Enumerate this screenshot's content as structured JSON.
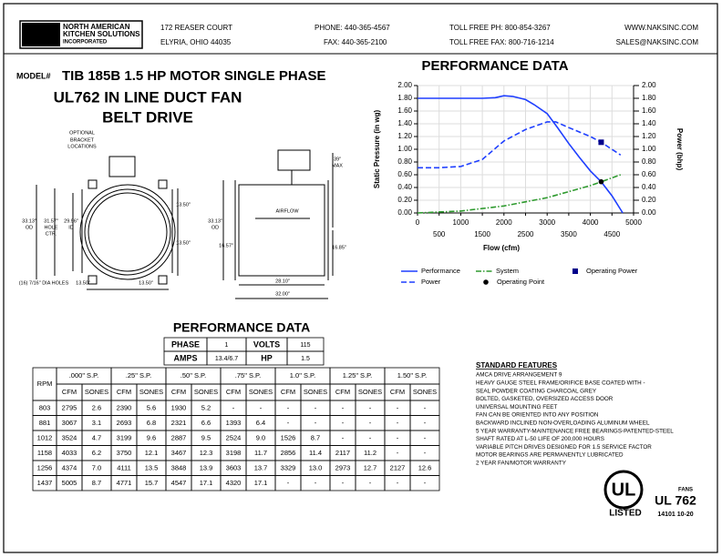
{
  "header": {
    "logo": "naks",
    "company": [
      "NORTH AMERICAN",
      "KITCHEN SOLUTIONS",
      "INCORPORATED"
    ],
    "address": [
      "172 REASER COURT",
      "ELYRIA, OHIO 44035"
    ],
    "phone": "PHONE: 440-365-4567",
    "fax": "FAX: 440-365-2100",
    "toll_free_phone": "TOLL FREE PH: 800-854-3267",
    "toll_free_fax": "TOLL FREE FAX: 800-716-1214",
    "web": "WWW.NAKSINC.COM",
    "email": "SALES@NAKSINC.COM"
  },
  "model": {
    "label": "MODEL#",
    "name": "TIB 185B  1.5 HP MOTOR SINGLE PHASE",
    "line2": "UL762 IN LINE DUCT FAN",
    "line3": "BELT DRIVE"
  },
  "drawing": {
    "labels": [
      "OPTIONAL",
      "BRACKET",
      "LOCATIONS",
      "33.13\"",
      "OD",
      "31.57\"",
      "HOLE",
      "CTR.",
      "29.96\"",
      "ID",
      "13.50\"",
      "13.50\"",
      "13.50\"",
      "13.50\"",
      "(16) 7/16\" DIA HOLES",
      "33.13\"",
      "OD",
      "16.57\"",
      "39\"",
      "MAX",
      "16.85\"",
      "AIRFLOW",
      "28.10\"",
      "32.00\""
    ]
  },
  "chart_data": {
    "type": "line",
    "title": "PERFORMANCE DATA",
    "x_label": "Flow (cfm)",
    "y_label": "Static Pressure (in wg)",
    "y2_label": "Power (bhp)",
    "xlim": [
      0,
      5000
    ],
    "xticks": [
      0,
      500,
      1000,
      1500,
      2000,
      2500,
      3000,
      3500,
      4000,
      4500,
      5000
    ],
    "ylim": [
      0,
      2
    ],
    "yticks": [
      {
        "value": 0,
        "label": "0.00"
      },
      {
        "value": 0.2,
        "label": "0.20"
      },
      {
        "value": 0.4,
        "label": "0.40"
      },
      {
        "value": 0.6,
        "label": "0.60"
      },
      {
        "value": 0.8,
        "label": "0.80"
      },
      {
        "value": 1,
        "label": "1.00"
      },
      {
        "value": 1.2,
        "label": "1.20"
      },
      {
        "value": 1.4,
        "label": "1.40"
      },
      {
        "value": 1.6,
        "label": "1.60"
      },
      {
        "value": 1.8,
        "label": "1.80"
      },
      {
        "value": 2,
        "label": "2.00"
      }
    ],
    "y2lim": [
      0,
      2
    ],
    "y2ticks": [
      {
        "value": 0,
        "label": "0.00"
      },
      {
        "value": 0.2,
        "label": "0.20"
      },
      {
        "value": 0.4,
        "label": "0.40"
      },
      {
        "value": 0.6,
        "label": "0.60"
      },
      {
        "value": 0.8,
        "label": "0.80"
      },
      {
        "value": 1,
        "label": "1.00"
      },
      {
        "value": 1.2,
        "label": "1.20"
      },
      {
        "value": 1.4,
        "label": "1.40"
      },
      {
        "value": 1.6,
        "label": "1.60"
      },
      {
        "value": 1.8,
        "label": "1.80"
      },
      {
        "value": 2,
        "label": "2.00"
      }
    ],
    "grid": true,
    "series": [
      {
        "name": "Performance",
        "color": "#1f3fff",
        "style": "solid",
        "x": [
          0,
          500,
          1000,
          1500,
          1800,
          2000,
          2200,
          2500,
          2700,
          3000,
          3250,
          3500,
          3750,
          4000,
          4250,
          4500,
          4750
        ],
        "values": [
          1.8,
          1.8,
          1.8,
          1.8,
          1.81,
          1.84,
          1.83,
          1.78,
          1.7,
          1.56,
          1.33,
          1.09,
          0.87,
          0.66,
          0.49,
          0.27,
          0
        ]
      },
      {
        "name": "Power",
        "color": "#1f3fff",
        "style": "dashed",
        "axis": "y2",
        "x": [
          0,
          500,
          1000,
          1500,
          2000,
          2500,
          3000,
          3200,
          3500,
          4000,
          4250,
          4700
        ],
        "values": [
          0.71,
          0.71,
          0.73,
          0.84,
          1.13,
          1.31,
          1.43,
          1.43,
          1.34,
          1.2,
          1.11,
          0.91
        ]
      },
      {
        "name": "System",
        "color": "#2e9a2e",
        "style": "dashdot",
        "x": [
          0,
          1000,
          2000,
          3000,
          4000,
          4250,
          4700
        ],
        "values": [
          0,
          0.03,
          0.11,
          0.24,
          0.43,
          0.49,
          0.6
        ]
      }
    ],
    "points": [
      {
        "name": "Operating Power",
        "x": 4250,
        "y": 1.11,
        "axis": "y2",
        "color": "#00008b",
        "shape": "square"
      },
      {
        "name": "Operating Point",
        "x": 4250,
        "y": 0.49,
        "color": "#000000",
        "shape": "circle"
      }
    ]
  },
  "specs": {
    "title": "PERFORMANCE DATA",
    "rows": [
      [
        "PHASE",
        "1",
        "VOLTS",
        "115"
      ],
      [
        "AMPS",
        "13.4/6.7",
        "HP",
        "1.5"
      ]
    ]
  },
  "table": {
    "corner": "RPM",
    "groups": [
      ".000\" S.P.",
      ".25\" S.P.",
      ".50\" S.P.",
      ".75\" S.P.",
      "1.0\" S.P.",
      "1.25\" S.P.",
      "1.50\" S.P."
    ],
    "sub": [
      "CFM",
      "SONES"
    ],
    "rows": [
      [
        "803",
        "2795",
        "2.6",
        "2390",
        "5.6",
        "1930",
        "5.2",
        "-",
        "-",
        "-",
        "-",
        "-",
        "-",
        "-",
        "-"
      ],
      [
        "881",
        "3067",
        "3.1",
        "2693",
        "6.8",
        "2321",
        "6.6",
        "1393",
        "6.4",
        "-",
        "-",
        "-",
        "-",
        "-",
        "-"
      ],
      [
        "1012",
        "3524",
        "4.7",
        "3199",
        "9.6",
        "2887",
        "9.5",
        "2524",
        "9.0",
        "1526",
        "8.7",
        "-",
        "-",
        "-",
        "-"
      ],
      [
        "1158",
        "4033",
        "6.2",
        "3750",
        "12.1",
        "3467",
        "12.3",
        "3198",
        "11.7",
        "2856",
        "11.4",
        "2117",
        "11.2",
        "-",
        "-"
      ],
      [
        "1256",
        "4374",
        "7.0",
        "4111",
        "13.5",
        "3848",
        "13.9",
        "3603",
        "13.7",
        "3329",
        "13.0",
        "2973",
        "12.7",
        "2127",
        "12.6"
      ],
      [
        "1437",
        "5005",
        "8.7",
        "4771",
        "15.7",
        "4547",
        "17.1",
        "4320",
        "17.1",
        "-",
        "-",
        "-",
        "-",
        "-",
        "-"
      ]
    ]
  },
  "features": {
    "title": "STANDARD FEATURES",
    "items": [
      "AMCA DRIVE ARRANGEMENT 9",
      "HEAVY GAUGE STEEL FRAME/ORIFICE BASE COATED WITH -",
      "SEAL POWDER COATING CHARCOAL GREY",
      "BOLTED, GASKETED, OVERSIZED ACCESS DOOR",
      "UNIVERSAL MOUNTING FEET",
      "FAN CAN BE ORIENTED INTO ANY POSITION",
      "BACKWARD INCLINED NON-OVERLOADING ALUMINUM WHEEL",
      "5 YEAR WARRANTY-MAINTENANCE FREE BEARINGS-PATENTED-STEEL",
      "SHAFT RATED AT L-50 LIFE OF 200,000 HOURS",
      "VARIABLE PITCH DRIVES DESIGNED FOR 1.5 SERVICE FACTOR",
      "MOTOR BEARINGS ARE PERMANENTLY LUBRICATED",
      "2 YEAR FAN/MOTOR WARRANTY"
    ]
  },
  "ul": {
    "mark": "UL",
    "listed": "LISTED",
    "category": "FANS",
    "standard": "UL 762",
    "code": "14101 10-20"
  }
}
